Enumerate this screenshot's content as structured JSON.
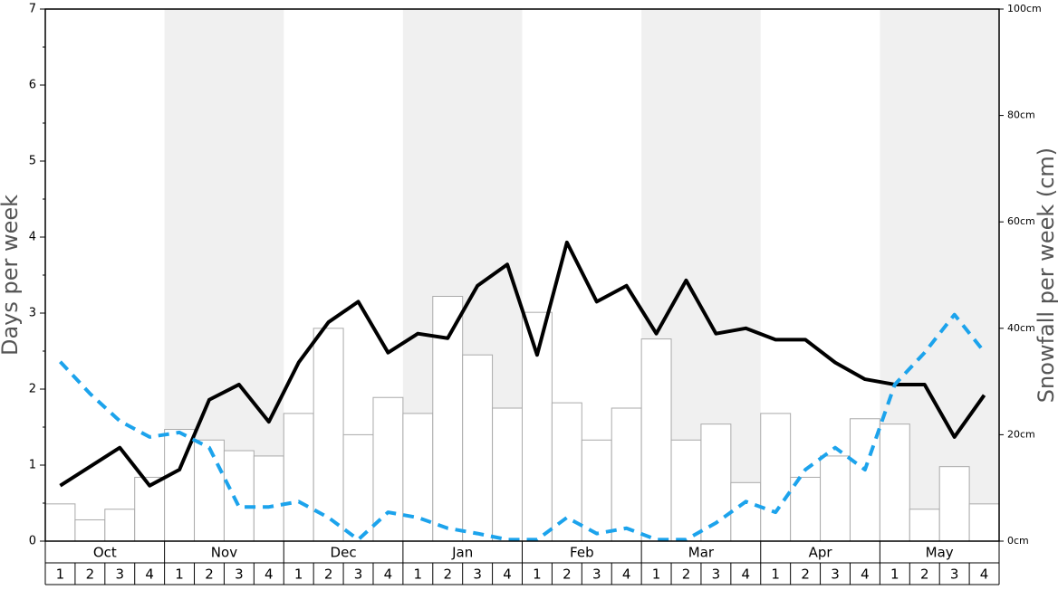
{
  "chart_data": {
    "type": "bar-line",
    "ylabel": "Days per week",
    "y2label": "Snowfall per week (cm)",
    "months": [
      "Oct",
      "Nov",
      "Dec",
      "Jan",
      "Feb",
      "Mar",
      "Apr",
      "May"
    ],
    "shaded_months": [
      false,
      true,
      false,
      true,
      false,
      true,
      false,
      true
    ],
    "shade_color": "#f0f0f0",
    "categories": [
      "1",
      "2",
      "3",
      "4",
      "1",
      "2",
      "3",
      "4",
      "1",
      "2",
      "3",
      "4",
      "1",
      "2",
      "3",
      "4",
      "1",
      "2",
      "3",
      "4",
      "1",
      "2",
      "3",
      "4",
      "1",
      "2",
      "3",
      "4",
      "1",
      "2",
      "3",
      "4"
    ],
    "ylim": [
      0,
      7
    ],
    "yticks": [
      0,
      1,
      2,
      3,
      4,
      5,
      6,
      7
    ],
    "y2lim": [
      0,
      100
    ],
    "y2ticks": [
      {
        "value": 0,
        "label": "0cm"
      },
      {
        "value": 20,
        "label": "20cm"
      },
      {
        "value": 40,
        "label": "40cm"
      },
      {
        "value": 60,
        "label": "60cm"
      },
      {
        "value": 80,
        "label": "80cm"
      },
      {
        "value": 100,
        "label": "100cm"
      }
    ],
    "series": [
      {
        "kind": "bar",
        "axis": "y2",
        "color": "#ffffff",
        "edge": "#aaaaaa",
        "values": [
          7,
          4,
          6,
          12,
          21,
          19,
          17,
          16,
          24,
          40,
          20,
          27,
          24,
          46,
          35,
          25,
          43,
          26,
          19,
          25,
          38,
          19,
          22,
          11,
          24,
          12,
          16,
          23,
          22,
          6,
          14,
          7
        ]
      },
      {
        "kind": "line",
        "axis": "y",
        "color": "#000000",
        "dashed": false,
        "values": [
          0.73,
          0.98,
          1.23,
          0.73,
          0.94,
          1.86,
          2.06,
          1.57,
          2.35,
          2.88,
          3.15,
          2.48,
          2.73,
          2.67,
          3.36,
          3.64,
          2.45,
          3.93,
          3.15,
          3.36,
          2.73,
          3.43,
          2.73,
          2.8,
          2.65,
          2.65,
          2.35,
          2.13,
          2.06,
          2.06,
          1.37,
          1.92
        ]
      },
      {
        "kind": "line",
        "axis": "y",
        "color": "#1ca3ec",
        "dashed": true,
        "values": [
          2.36,
          1.94,
          1.58,
          1.37,
          1.43,
          1.23,
          0.45,
          0.45,
          0.52,
          0.31,
          0.02,
          0.38,
          0.31,
          0.17,
          0.1,
          0.02,
          0.02,
          0.31,
          0.1,
          0.17,
          0.02,
          0.02,
          0.24,
          0.52,
          0.38,
          0.94,
          1.23,
          0.94,
          2.06,
          2.48,
          2.98,
          2.49
        ]
      }
    ]
  }
}
